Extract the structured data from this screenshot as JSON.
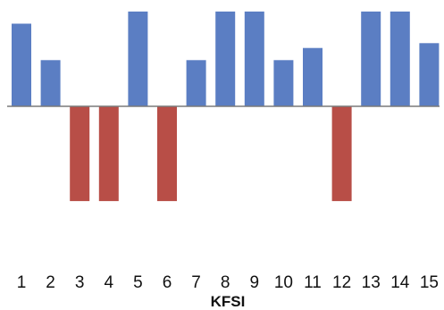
{
  "chart_data": {
    "type": "bar",
    "title": "",
    "xlabel": "KFSI",
    "ylabel": "",
    "categories": [
      "1",
      "2",
      "3",
      "4",
      "5",
      "6",
      "7",
      "8",
      "9",
      "10",
      "11",
      "12",
      "13",
      "14",
      "15"
    ],
    "values": [
      0.68,
      0.38,
      -0.78,
      -0.78,
      0.78,
      -0.78,
      0.38,
      0.78,
      0.78,
      0.38,
      0.48,
      -0.78,
      0.78,
      0.78,
      0.52
    ],
    "ylim": [
      -1,
      0.8
    ],
    "grid": false,
    "legend": "none",
    "colors": {
      "positive": "#5b7ec3",
      "negative": "#b84e47",
      "baseline": "#7a7a7a"
    }
  }
}
